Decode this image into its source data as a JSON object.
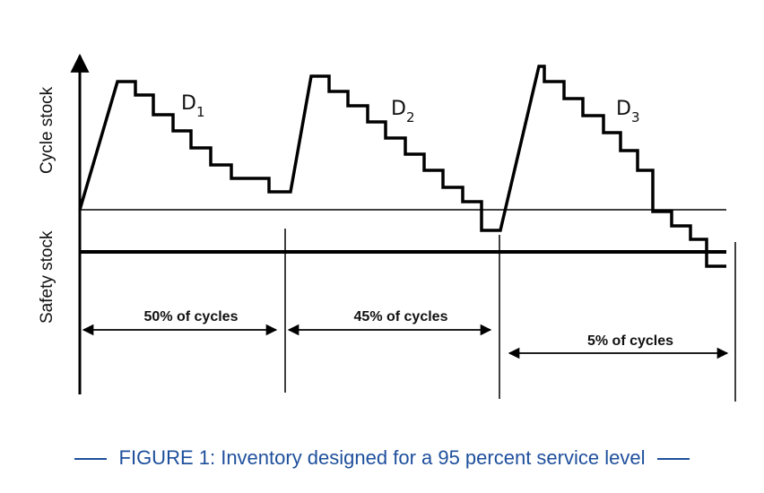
{
  "labels": {
    "cycle_stock": "Cycle stock",
    "safety_stock": "Safety stock"
  },
  "demand_labels": [
    {
      "base": "D",
      "sub": "1"
    },
    {
      "base": "D",
      "sub": "2"
    },
    {
      "base": "D",
      "sub": "3"
    }
  ],
  "cycle_spans": [
    {
      "label": "50% of cycles"
    },
    {
      "label": "45% of cycles"
    },
    {
      "label": "5% of cycles"
    }
  ],
  "caption": "FIGURE 1: Inventory designed for a 95 percent service level",
  "colors": {
    "line": "#000000",
    "caption": "#1e4f9c",
    "edge_text": "#c77a2a"
  }
}
